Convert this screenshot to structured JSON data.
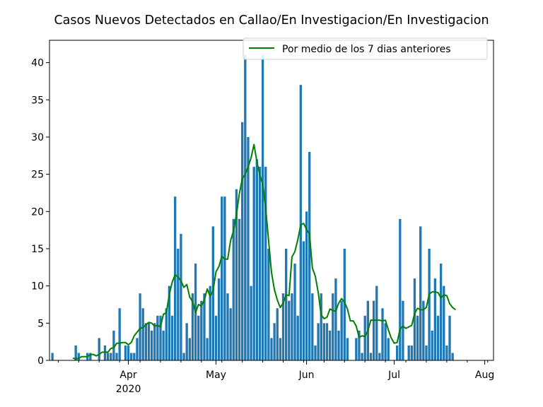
{
  "chart_data": {
    "type": "bar",
    "title": "Casos Nuevos Detectados en Callao/En Investigacion/En Investigacion",
    "xlabel": "",
    "ylabel": "",
    "x_start_date": "2020-03-06",
    "x_end_date": "2020-08-04",
    "xlim": [
      "2020-03-05",
      "2020-08-04"
    ],
    "ylim": [
      0,
      43
    ],
    "yticks": [
      0,
      5,
      10,
      15,
      20,
      25,
      30,
      35,
      40
    ],
    "xticks": [
      {
        "label": "Apr",
        "sublabel": "2020",
        "date": "2020-04-01"
      },
      {
        "label": "May",
        "sublabel": "",
        "date": "2020-05-01"
      },
      {
        "label": "Jun",
        "sublabel": "",
        "date": "2020-06-01"
      },
      {
        "label": "Jul",
        "sublabel": "",
        "date": "2020-07-01"
      },
      {
        "label": "Aug",
        "sublabel": "",
        "date": "2020-08-01"
      }
    ],
    "bar_color": "#1f77b4",
    "line_color": "#008000",
    "legend": {
      "placement": "top-right",
      "entries": [
        "Por medio de los 7 dias anteriores"
      ]
    },
    "series": [
      {
        "name": "",
        "kind": "bar",
        "values": [
          1,
          0,
          0,
          0,
          0,
          0,
          0,
          0,
          2,
          1,
          0,
          0,
          1,
          1,
          0,
          0,
          3,
          0,
          2,
          1,
          1,
          4,
          1,
          7,
          0,
          2,
          2,
          1,
          1,
          3,
          9,
          7,
          5,
          5,
          4,
          5,
          6,
          6,
          4,
          7,
          10,
          6,
          22,
          15,
          17,
          1,
          5,
          3,
          9,
          13,
          6,
          8,
          9,
          3,
          10,
          18,
          6,
          11,
          22,
          22,
          9,
          7,
          19,
          23,
          19,
          32,
          41,
          30,
          10,
          26,
          27,
          26,
          41,
          26,
          15,
          3,
          5,
          7,
          3,
          9,
          15,
          8,
          9,
          13,
          6,
          37,
          16,
          20,
          28,
          9,
          2,
          5,
          9,
          5,
          5,
          4,
          9,
          11,
          4,
          8,
          15,
          3,
          0,
          0,
          3,
          4,
          1,
          6,
          8,
          1,
          8,
          10,
          1,
          7,
          5,
          3,
          0,
          0,
          2,
          19,
          8,
          0,
          2,
          2,
          11,
          6,
          18,
          8,
          2,
          15,
          4,
          11,
          6,
          13,
          10,
          2,
          6,
          1
        ]
      },
      {
        "name": "Por medio de los 7 dias anteriores",
        "kind": "line",
        "start_index": 7,
        "values": [
          0.3,
          0.2,
          0.3,
          0.5,
          0.5,
          0.5,
          0.8,
          0.8,
          0.6,
          0.8,
          1.1,
          1.1,
          1.1,
          1.6,
          1.7,
          2.3,
          2.3,
          2.4,
          2.4,
          2.1,
          2.4,
          3.3,
          3.8,
          4.3,
          4.4,
          4.8,
          5.1,
          5.0,
          4.6,
          4.7,
          4.5,
          6.2,
          6.4,
          8.8,
          10.5,
          11.5,
          11.2,
          10.7,
          9.8,
          10.2,
          8.5,
          7.9,
          6.4,
          7.5,
          7.3,
          8.1,
          9.6,
          8.6,
          9.4,
          11.9,
          12.6,
          14.0,
          13.6,
          13.6,
          16.1,
          17.4,
          19.6,
          22.4,
          24.4,
          25.0,
          26.0,
          27.2,
          29.0,
          26.7,
          24.9,
          23.7,
          20.5,
          16.1,
          11.8,
          9.5,
          8.1,
          7.1,
          7.7,
          8.8,
          8.7,
          13.9,
          14.6,
          16.2,
          18.2,
          18.4,
          17.6,
          17.0,
          12.4,
          11.3,
          9.1,
          6.1,
          5.6,
          5.8,
          6.9,
          6.7,
          6.6,
          7.7,
          8.3,
          7.8,
          6.9,
          5.3,
          5.3,
          4.6,
          3.1,
          3.3,
          3.2,
          4.0,
          5.4,
          5.4,
          5.4,
          5.4,
          5.3,
          5.4,
          4.1,
          3.0,
          2.3,
          2.4,
          4.2,
          4.6,
          4.3,
          4.5,
          4.7,
          6.3,
          7.0,
          6.8,
          6.8,
          7.1,
          8.9,
          9.2,
          9.2,
          9.1,
          8.4,
          8.8,
          8.7,
          7.6,
          7.1,
          6.8
        ]
      }
    ]
  }
}
